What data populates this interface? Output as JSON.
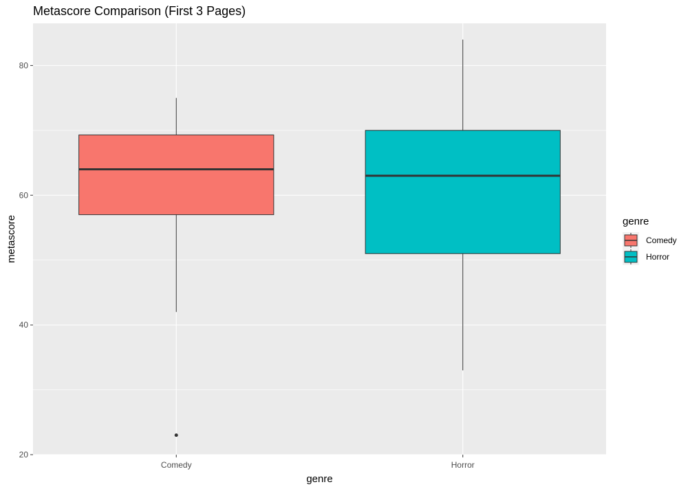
{
  "chart_data": {
    "type": "boxplot",
    "title": "Metascore Comparison (First 3 Pages)",
    "xlabel": "genre",
    "ylabel": "metascore",
    "categories": [
      "Comedy",
      "Horror"
    ],
    "ylim": [
      20,
      86.5
    ],
    "yticks": [
      20,
      40,
      60,
      80
    ],
    "grid": true,
    "legend": {
      "title": "genre",
      "position": "right",
      "entries": [
        "Comedy",
        "Horror"
      ]
    },
    "series": [
      {
        "category": "Comedy",
        "min": 42,
        "q1": 57,
        "median": 64,
        "q3": 69.3,
        "max": 75,
        "outliers": [
          23
        ],
        "color": "#F8766D"
      },
      {
        "category": "Horror",
        "min": 33,
        "q1": 51,
        "median": 63,
        "q3": 70,
        "max": 84,
        "outliers": [],
        "color": "#00BFC4"
      }
    ]
  }
}
